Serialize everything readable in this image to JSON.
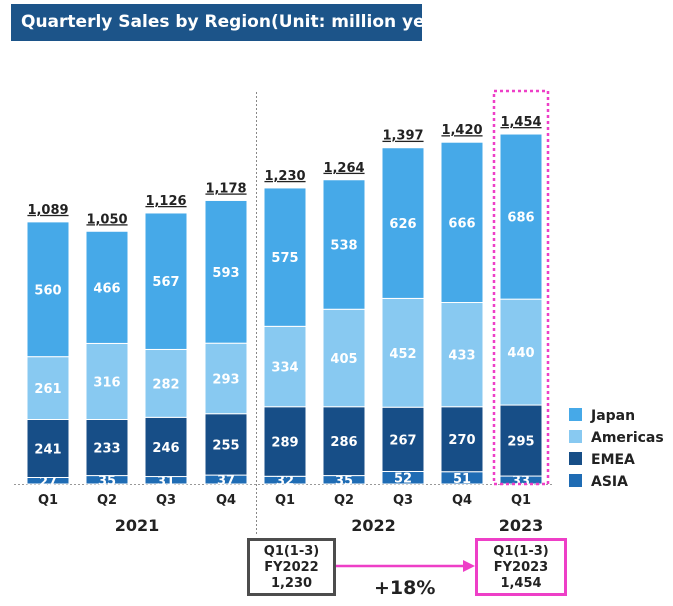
{
  "title": "Quarterly Sales by Region(Unit: million yen)",
  "chart_data": {
    "type": "bar",
    "stacked": true,
    "categories": [
      "Q1",
      "Q2",
      "Q3",
      "Q4",
      "Q1",
      "Q2",
      "Q3",
      "Q4",
      "Q1"
    ],
    "years": [
      {
        "label": "2021",
        "quarters": 4
      },
      {
        "label": "2022",
        "quarters": 4
      },
      {
        "label": "2023",
        "quarters": 1
      }
    ],
    "series": [
      {
        "name": "ASIA",
        "color": "#1f6cb4",
        "values": [
          27,
          35,
          31,
          37,
          32,
          35,
          52,
          51,
          33
        ]
      },
      {
        "name": "EMEA",
        "color": "#174e87",
        "values": [
          241,
          233,
          246,
          255,
          289,
          286,
          267,
          270,
          295
        ]
      },
      {
        "name": "Americas",
        "color": "#88c9f1",
        "values": [
          261,
          316,
          282,
          293,
          334,
          405,
          452,
          433,
          440
        ]
      },
      {
        "name": "Japan",
        "color": "#46a9e8",
        "values": [
          560,
          466,
          567,
          593,
          575,
          538,
          626,
          666,
          686
        ]
      }
    ],
    "totals": [
      "1,089",
      "1,050",
      "1,126",
      "1,178",
      "1,230",
      "1,264",
      "1,397",
      "1,420",
      "1,454"
    ],
    "legend": [
      "Japan",
      "Americas",
      "EMEA",
      "ASIA"
    ],
    "legend_position": "right",
    "highlight_color": "#ee3fc7"
  },
  "comparison": {
    "left_box": [
      "Q1(1-3)",
      "FY2022",
      "1,230"
    ],
    "right_box": [
      "Q1(1-3)",
      "FY2023",
      "1,454"
    ],
    "change": "+18%",
    "arrow_color": "#ee3fc7"
  }
}
